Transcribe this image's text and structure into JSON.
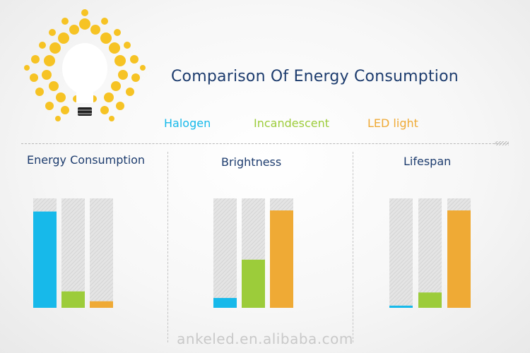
{
  "title": "Comparison Of Energy Consumption",
  "legend": [
    {
      "label": "Halogen",
      "color": "#17b9ea"
    },
    {
      "label": "Incandescent",
      "color": "#9ccc3a"
    },
    {
      "label": "LED light",
      "color": "#efaa35"
    }
  ],
  "icon": "lightbulb-sun-icon",
  "watermark": "ankeled.en.alibaba.com",
  "chart_data": [
    {
      "type": "bar",
      "title": "Energy Consumption",
      "categories": [
        "Halogen",
        "Incandescent",
        "LED light"
      ],
      "values": [
        88,
        15,
        6
      ],
      "ylim": [
        0,
        100
      ]
    },
    {
      "type": "bar",
      "title": "Brightness",
      "categories": [
        "Halogen",
        "Incandescent",
        "LED light"
      ],
      "values": [
        9,
        44,
        89
      ],
      "ylim": [
        0,
        100
      ]
    },
    {
      "type": "bar",
      "title": "Lifespan",
      "categories": [
        "Halogen",
        "Incandescent",
        "LED light"
      ],
      "values": [
        2,
        14,
        89
      ],
      "ylim": [
        0,
        100
      ]
    }
  ]
}
